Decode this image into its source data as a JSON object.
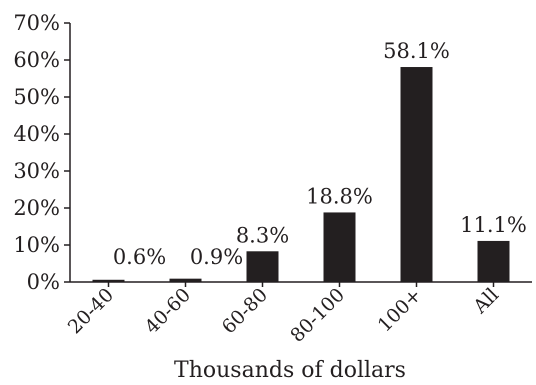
{
  "chart_data": {
    "type": "bar",
    "categories": [
      "20-40",
      "40-60",
      "60-80",
      "80-100",
      "100+",
      "All"
    ],
    "values": [
      0.6,
      0.9,
      8.3,
      18.8,
      58.1,
      11.1
    ],
    "data_labels": [
      "0.6%",
      "0.9%",
      "8.3%",
      "18.8%",
      "58.1%",
      "11.1%"
    ],
    "xlabel": "Thousands of dollars",
    "ylabel": "",
    "ylim": [
      0,
      70
    ],
    "yticks": [
      0,
      10,
      20,
      30,
      40,
      50,
      60,
      70
    ],
    "ytick_labels": [
      "0%",
      "10%",
      "20%",
      "30%",
      "40%",
      "50%",
      "60%",
      "70%"
    ],
    "grid": false,
    "legend": "none",
    "bar_color": "#231f20",
    "axis_color": "#231f20"
  }
}
